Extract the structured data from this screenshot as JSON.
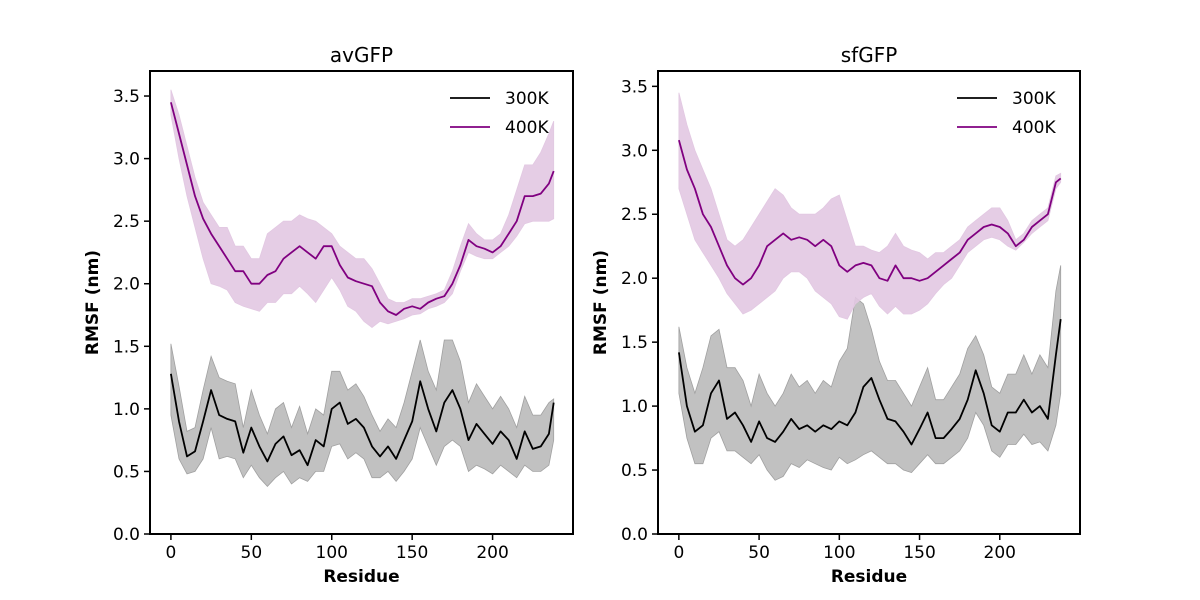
{
  "chart_data": [
    {
      "type": "line",
      "title": "avGFP",
      "xlabel": "Residue",
      "ylabel": "RMSF (nm)",
      "xlim": [
        -13,
        250
      ],
      "ylim": [
        0,
        3.7
      ],
      "xticks": [
        0,
        50,
        100,
        150,
        200
      ],
      "yticks": [
        0.0,
        0.5,
        1.0,
        1.5,
        2.0,
        2.5,
        3.0,
        3.5
      ],
      "grid": false,
      "legend": "top-right",
      "x": [
        0,
        5,
        10,
        15,
        20,
        25,
        30,
        35,
        40,
        45,
        50,
        55,
        60,
        65,
        70,
        75,
        80,
        85,
        90,
        95,
        100,
        105,
        110,
        115,
        120,
        125,
        130,
        135,
        140,
        145,
        150,
        155,
        160,
        165,
        170,
        175,
        180,
        185,
        190,
        195,
        200,
        205,
        210,
        215,
        220,
        225,
        230,
        235,
        238
      ],
      "series": [
        {
          "name": "300K",
          "color": "#000000",
          "band_color": "#a0a0a0",
          "values": [
            1.28,
            0.9,
            0.62,
            0.66,
            0.9,
            1.15,
            0.95,
            0.92,
            0.9,
            0.65,
            0.85,
            0.7,
            0.58,
            0.72,
            0.78,
            0.63,
            0.67,
            0.55,
            0.75,
            0.7,
            1.0,
            1.05,
            0.88,
            0.92,
            0.85,
            0.7,
            0.62,
            0.7,
            0.6,
            0.75,
            0.9,
            1.22,
            1.0,
            0.82,
            1.05,
            1.15,
            1.0,
            0.75,
            0.88,
            0.8,
            0.72,
            0.82,
            0.75,
            0.6,
            0.82,
            0.68,
            0.7,
            0.8,
            1.05
          ],
          "lower": [
            0.95,
            0.6,
            0.48,
            0.5,
            0.6,
            0.85,
            0.6,
            0.62,
            0.6,
            0.45,
            0.55,
            0.45,
            0.38,
            0.45,
            0.5,
            0.4,
            0.45,
            0.42,
            0.5,
            0.5,
            0.7,
            0.72,
            0.6,
            0.65,
            0.6,
            0.45,
            0.45,
            0.5,
            0.42,
            0.5,
            0.6,
            0.85,
            0.7,
            0.55,
            0.7,
            0.75,
            0.7,
            0.5,
            0.55,
            0.52,
            0.48,
            0.55,
            0.5,
            0.45,
            0.55,
            0.5,
            0.5,
            0.55,
            0.75
          ],
          "upper": [
            1.52,
            1.18,
            0.82,
            0.85,
            1.15,
            1.42,
            1.25,
            1.22,
            1.2,
            0.85,
            1.15,
            0.95,
            0.8,
            1.0,
            1.05,
            0.85,
            1.02,
            0.8,
            1.0,
            0.95,
            1.3,
            1.3,
            1.15,
            1.2,
            1.1,
            0.95,
            0.82,
            0.92,
            0.85,
            1.05,
            1.3,
            1.55,
            1.3,
            1.15,
            1.55,
            1.55,
            1.38,
            1.05,
            1.2,
            1.1,
            1.0,
            1.1,
            1.0,
            0.85,
            1.1,
            0.95,
            0.95,
            1.05,
            1.08
          ]
        },
        {
          "name": "400K",
          "color": "#800080",
          "band_color": "#e2c8e2",
          "values": [
            3.45,
            3.2,
            2.95,
            2.7,
            2.52,
            2.4,
            2.3,
            2.2,
            2.1,
            2.1,
            2.0,
            2.0,
            2.07,
            2.1,
            2.2,
            2.25,
            2.3,
            2.25,
            2.2,
            2.3,
            2.3,
            2.15,
            2.05,
            2.02,
            2.0,
            1.98,
            1.85,
            1.78,
            1.75,
            1.8,
            1.82,
            1.8,
            1.85,
            1.88,
            1.9,
            2.0,
            2.15,
            2.35,
            2.3,
            2.28,
            2.25,
            2.3,
            2.4,
            2.5,
            2.7,
            2.7,
            2.72,
            2.8,
            2.9
          ],
          "lower": [
            3.35,
            3.0,
            2.7,
            2.45,
            2.2,
            2.0,
            1.98,
            1.95,
            1.85,
            1.82,
            1.8,
            1.78,
            1.85,
            1.85,
            1.92,
            1.92,
            1.98,
            1.92,
            1.85,
            1.95,
            2.05,
            1.95,
            1.82,
            1.78,
            1.7,
            1.65,
            1.7,
            1.68,
            1.7,
            1.72,
            1.75,
            1.76,
            1.8,
            1.82,
            1.85,
            1.92,
            2.1,
            2.25,
            2.22,
            2.2,
            2.2,
            2.25,
            2.3,
            2.38,
            2.48,
            2.5,
            2.5,
            2.5,
            2.52
          ],
          "upper": [
            3.55,
            3.35,
            3.1,
            2.85,
            2.65,
            2.55,
            2.45,
            2.45,
            2.3,
            2.3,
            2.2,
            2.2,
            2.4,
            2.45,
            2.5,
            2.5,
            2.55,
            2.52,
            2.5,
            2.45,
            2.4,
            2.3,
            2.25,
            2.2,
            2.2,
            2.12,
            2.0,
            1.88,
            1.85,
            1.85,
            1.88,
            1.88,
            1.9,
            1.92,
            1.95,
            2.1,
            2.3,
            2.48,
            2.4,
            2.35,
            2.35,
            2.4,
            2.55,
            2.75,
            2.95,
            2.95,
            3.05,
            3.2,
            3.3
          ]
        }
      ]
    },
    {
      "type": "line",
      "title": "sfGFP",
      "xlabel": "Residue",
      "ylabel": "RMSF (nm)",
      "xlim": [
        -13,
        250
      ],
      "ylim": [
        0,
        3.62
      ],
      "xticks": [
        0,
        50,
        100,
        150,
        200
      ],
      "yticks": [
        0.0,
        0.5,
        1.0,
        1.5,
        2.0,
        2.5,
        3.0,
        3.5
      ],
      "grid": false,
      "legend": "top-right",
      "x": [
        0,
        5,
        10,
        15,
        20,
        25,
        30,
        35,
        40,
        45,
        50,
        55,
        60,
        65,
        70,
        75,
        80,
        85,
        90,
        95,
        100,
        105,
        110,
        115,
        120,
        125,
        130,
        135,
        140,
        145,
        150,
        155,
        160,
        165,
        170,
        175,
        180,
        185,
        190,
        195,
        200,
        205,
        210,
        215,
        220,
        225,
        230,
        235,
        238
      ],
      "series": [
        {
          "name": "300K",
          "color": "#000000",
          "band_color": "#a0a0a0",
          "values": [
            1.42,
            1.0,
            0.8,
            0.85,
            1.1,
            1.2,
            0.9,
            0.95,
            0.85,
            0.72,
            0.88,
            0.75,
            0.72,
            0.8,
            0.9,
            0.82,
            0.85,
            0.8,
            0.85,
            0.82,
            0.88,
            0.85,
            0.95,
            1.15,
            1.22,
            1.05,
            0.9,
            0.88,
            0.8,
            0.7,
            0.82,
            0.95,
            0.75,
            0.75,
            0.82,
            0.9,
            1.05,
            1.28,
            1.1,
            0.85,
            0.8,
            0.95,
            0.95,
            1.05,
            0.95,
            1.0,
            0.9,
            1.4,
            1.68
          ],
          "lower": [
            1.1,
            0.75,
            0.55,
            0.55,
            0.75,
            0.8,
            0.65,
            0.65,
            0.6,
            0.55,
            0.62,
            0.5,
            0.42,
            0.45,
            0.55,
            0.52,
            0.58,
            0.55,
            0.52,
            0.5,
            0.6,
            0.55,
            0.58,
            0.62,
            0.65,
            0.6,
            0.55,
            0.55,
            0.5,
            0.48,
            0.55,
            0.62,
            0.55,
            0.55,
            0.6,
            0.65,
            0.75,
            0.95,
            0.85,
            0.65,
            0.6,
            0.7,
            0.7,
            0.78,
            0.7,
            0.72,
            0.65,
            0.85,
            1.1
          ],
          "upper": [
            1.62,
            1.3,
            1.1,
            1.3,
            1.55,
            1.6,
            1.3,
            1.3,
            1.2,
            1.0,
            1.25,
            1.1,
            1.0,
            1.1,
            1.25,
            1.15,
            1.2,
            1.1,
            1.2,
            1.15,
            1.35,
            1.45,
            1.85,
            1.8,
            1.6,
            1.35,
            1.2,
            1.2,
            1.1,
            1.0,
            1.15,
            1.3,
            1.05,
            1.05,
            1.15,
            1.25,
            1.45,
            1.55,
            1.4,
            1.15,
            1.1,
            1.25,
            1.25,
            1.4,
            1.25,
            1.4,
            1.3,
            1.9,
            2.1
          ]
        },
        {
          "name": "400K",
          "color": "#800080",
          "band_color": "#e2c8e2",
          "values": [
            3.08,
            2.85,
            2.7,
            2.5,
            2.4,
            2.25,
            2.1,
            2.0,
            1.95,
            2.0,
            2.1,
            2.25,
            2.3,
            2.35,
            2.3,
            2.32,
            2.3,
            2.25,
            2.3,
            2.25,
            2.1,
            2.05,
            2.1,
            2.12,
            2.1,
            2.0,
            1.98,
            2.1,
            2.0,
            2.0,
            1.98,
            2.0,
            2.05,
            2.1,
            2.15,
            2.2,
            2.3,
            2.35,
            2.4,
            2.42,
            2.4,
            2.35,
            2.25,
            2.3,
            2.4,
            2.45,
            2.5,
            2.75,
            2.78
          ],
          "lower": [
            2.7,
            2.5,
            2.3,
            2.2,
            2.1,
            2.0,
            1.88,
            1.8,
            1.72,
            1.75,
            1.8,
            1.85,
            1.9,
            2.0,
            2.05,
            2.05,
            2.0,
            1.9,
            1.85,
            1.8,
            1.7,
            1.68,
            1.8,
            1.85,
            1.88,
            1.78,
            1.72,
            1.78,
            1.72,
            1.72,
            1.75,
            1.8,
            1.88,
            1.95,
            2.0,
            2.1,
            2.2,
            2.25,
            2.3,
            2.32,
            2.3,
            2.25,
            2.22,
            2.28,
            2.35,
            2.4,
            2.45,
            2.7,
            2.75
          ],
          "upper": [
            3.45,
            3.2,
            3.0,
            2.85,
            2.7,
            2.5,
            2.3,
            2.25,
            2.3,
            2.4,
            2.5,
            2.6,
            2.7,
            2.65,
            2.55,
            2.5,
            2.5,
            2.5,
            2.55,
            2.62,
            2.65,
            2.45,
            2.25,
            2.25,
            2.22,
            2.2,
            2.25,
            2.35,
            2.25,
            2.22,
            2.2,
            2.15,
            2.2,
            2.2,
            2.25,
            2.3,
            2.4,
            2.45,
            2.5,
            2.55,
            2.55,
            2.45,
            2.3,
            2.35,
            2.45,
            2.5,
            2.55,
            2.8,
            2.82
          ]
        }
      ]
    }
  ]
}
